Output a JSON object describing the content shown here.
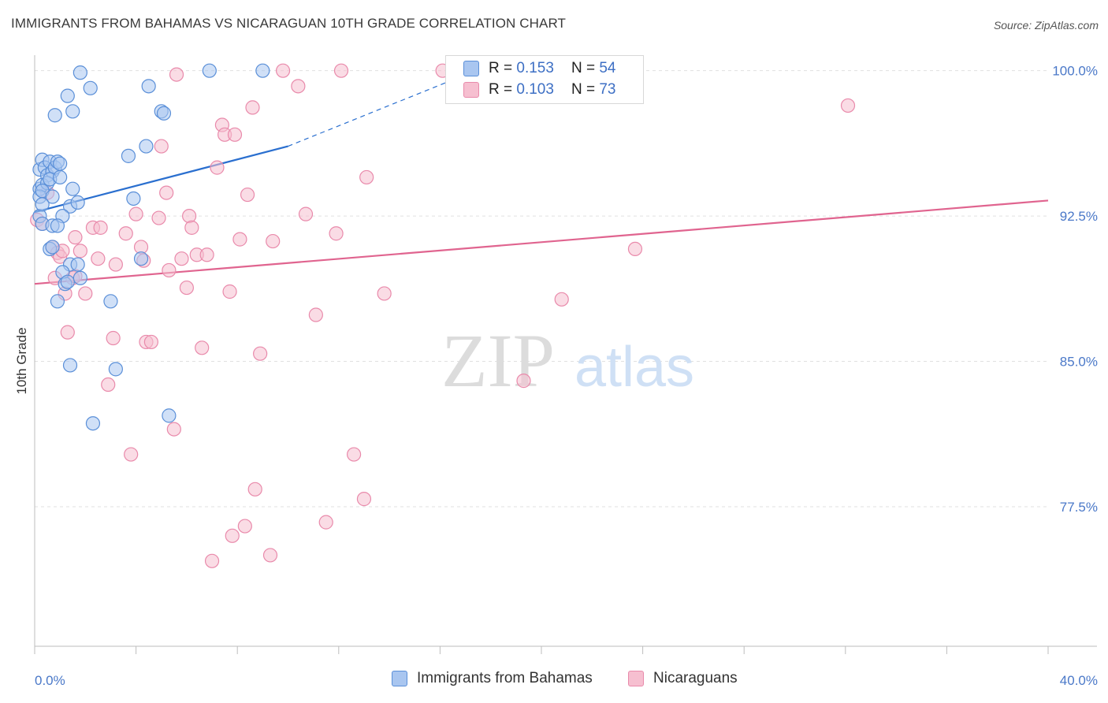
{
  "title": "IMMIGRANTS FROM BAHAMAS VS NICARAGUAN 10TH GRADE CORRELATION CHART",
  "source": "Source: ZipAtlas.com",
  "watermark": {
    "zip": "ZIP",
    "atlas": "atlas"
  },
  "legend": {
    "r_label": "R =",
    "n_label": "N =",
    "series": [
      {
        "r": "0.153",
        "n": "54"
      },
      {
        "r": "0.103",
        "n": "73"
      }
    ]
  },
  "colors": {
    "blue_fill": "#a9c6f0",
    "blue_stroke": "#5a8fd8",
    "blue_line": "#2a6fcf",
    "pink_fill": "#f6bfd0",
    "pink_stroke": "#e98aab",
    "pink_line": "#e0648f",
    "tick_text": "#4a78c8",
    "grid": "#e0e0e0"
  },
  "chart_data": {
    "type": "scatter",
    "title": "IMMIGRANTS FROM BAHAMAS VS NICARAGUAN 10TH GRADE CORRELATION CHART",
    "xlabel": "",
    "ylabel": "10th Grade",
    "xlim": [
      0,
      40
    ],
    "ylim": [
      70.3,
      100.8
    ],
    "x_tick_labels": [
      {
        "value": 0,
        "label": "0.0%"
      },
      {
        "value": 40,
        "label": "40.0%"
      }
    ],
    "y_tick_labels": [
      {
        "value": 100.0,
        "label": "100.0%"
      },
      {
        "value": 92.5,
        "label": "92.5%"
      },
      {
        "value": 85.0,
        "label": "85.0%"
      },
      {
        "value": 77.5,
        "label": "77.5%"
      }
    ],
    "grid": true,
    "legend_position": "top-center",
    "series": [
      {
        "name": "Immigrants from Bahamas",
        "color": "#a9c6f0",
        "trend": {
          "x": [
            0,
            10
          ],
          "y": [
            92.7,
            96.1
          ],
          "dashed_extension_to": [
            17.4,
            100.0
          ]
        },
        "points": [
          [
            0.2,
            94.9
          ],
          [
            0.3,
            95.4
          ],
          [
            0.4,
            95.0
          ],
          [
            0.5,
            94.6
          ],
          [
            0.6,
            95.3
          ],
          [
            0.7,
            94.8
          ],
          [
            0.8,
            95.0
          ],
          [
            0.9,
            95.3
          ],
          [
            0.2,
            93.9
          ],
          [
            0.3,
            94.1
          ],
          [
            0.5,
            94.2
          ],
          [
            0.6,
            94.4
          ],
          [
            0.2,
            93.5
          ],
          [
            0.3,
            93.8
          ],
          [
            0.7,
            93.5
          ],
          [
            1.0,
            95.2
          ],
          [
            1.0,
            94.5
          ],
          [
            1.5,
            93.9
          ],
          [
            1.4,
            93.0
          ],
          [
            1.7,
            93.2
          ],
          [
            0.2,
            92.5
          ],
          [
            0.3,
            92.1
          ],
          [
            0.7,
            92.0
          ],
          [
            1.1,
            92.5
          ],
          [
            0.6,
            90.8
          ],
          [
            0.7,
            90.9
          ],
          [
            1.4,
            90.0
          ],
          [
            1.7,
            90.0
          ],
          [
            1.1,
            89.6
          ],
          [
            1.2,
            89.0
          ],
          [
            1.3,
            89.1
          ],
          [
            0.9,
            88.1
          ],
          [
            3.0,
            88.1
          ],
          [
            1.4,
            84.8
          ],
          [
            3.2,
            84.6
          ],
          [
            2.3,
            81.8
          ],
          [
            5.3,
            82.2
          ],
          [
            1.8,
            99.9
          ],
          [
            2.2,
            99.1
          ],
          [
            1.3,
            98.7
          ],
          [
            1.5,
            97.9
          ],
          [
            0.8,
            97.7
          ],
          [
            4.5,
            99.2
          ],
          [
            5.0,
            97.9
          ],
          [
            5.1,
            97.8
          ],
          [
            4.4,
            96.1
          ],
          [
            3.7,
            95.6
          ],
          [
            3.9,
            93.4
          ],
          [
            4.2,
            90.3
          ],
          [
            6.9,
            100.0
          ],
          [
            9.0,
            100.0
          ],
          [
            0.3,
            93.1
          ],
          [
            0.9,
            92.0
          ],
          [
            1.8,
            89.3
          ]
        ]
      },
      {
        "name": "Nicaraguans",
        "color": "#f6bfd0",
        "trend": {
          "x": [
            0,
            40
          ],
          "y": [
            89.0,
            93.3
          ]
        },
        "points": [
          [
            0.1,
            92.3
          ],
          [
            0.3,
            92.1
          ],
          [
            0.5,
            93.7
          ],
          [
            0.8,
            89.3
          ],
          [
            0.7,
            90.9
          ],
          [
            0.9,
            90.6
          ],
          [
            1.0,
            90.4
          ],
          [
            1.1,
            90.7
          ],
          [
            1.2,
            88.5
          ],
          [
            1.3,
            86.5
          ],
          [
            1.5,
            89.3
          ],
          [
            1.6,
            91.4
          ],
          [
            1.8,
            90.7
          ],
          [
            2.0,
            88.5
          ],
          [
            2.3,
            91.9
          ],
          [
            2.5,
            90.3
          ],
          [
            2.6,
            91.9
          ],
          [
            2.9,
            83.8
          ],
          [
            3.1,
            86.2
          ],
          [
            3.2,
            90.0
          ],
          [
            3.6,
            91.6
          ],
          [
            3.8,
            80.2
          ],
          [
            4.0,
            92.6
          ],
          [
            4.2,
            90.9
          ],
          [
            4.4,
            86.0
          ],
          [
            4.6,
            86.0
          ],
          [
            4.9,
            92.4
          ],
          [
            5.0,
            96.1
          ],
          [
            5.2,
            93.7
          ],
          [
            5.3,
            89.7
          ],
          [
            5.5,
            81.5
          ],
          [
            5.6,
            99.8
          ],
          [
            5.8,
            90.3
          ],
          [
            6.0,
            88.8
          ],
          [
            6.1,
            92.5
          ],
          [
            6.2,
            91.9
          ],
          [
            6.4,
            90.5
          ],
          [
            6.6,
            85.7
          ],
          [
            6.8,
            90.5
          ],
          [
            7.0,
            74.7
          ],
          [
            7.2,
            95.0
          ],
          [
            7.4,
            97.2
          ],
          [
            7.5,
            96.7
          ],
          [
            7.7,
            88.6
          ],
          [
            7.9,
            96.7
          ],
          [
            7.8,
            76.0
          ],
          [
            8.1,
            91.3
          ],
          [
            8.3,
            76.5
          ],
          [
            8.4,
            93.6
          ],
          [
            8.6,
            98.1
          ],
          [
            8.7,
            78.4
          ],
          [
            8.9,
            85.4
          ],
          [
            9.3,
            75.0
          ],
          [
            9.4,
            91.2
          ],
          [
            9.8,
            100.0
          ],
          [
            10.4,
            99.2
          ],
          [
            10.7,
            92.6
          ],
          [
            11.1,
            87.4
          ],
          [
            11.5,
            76.7
          ],
          [
            11.9,
            91.6
          ],
          [
            12.1,
            100.0
          ],
          [
            12.6,
            80.2
          ],
          [
            13.0,
            77.9
          ],
          [
            13.1,
            94.5
          ],
          [
            13.8,
            88.5
          ],
          [
            16.1,
            100.0
          ],
          [
            19.3,
            84.0
          ],
          [
            20.8,
            88.2
          ],
          [
            21.1,
            100.0
          ],
          [
            23.7,
            90.8
          ],
          [
            32.1,
            98.2
          ],
          [
            1.6,
            89.4
          ],
          [
            4.3,
            90.2
          ]
        ]
      }
    ]
  },
  "bottom_legend": [
    {
      "label": "Immigrants from Bahamas"
    },
    {
      "label": "Nicaraguans"
    }
  ]
}
